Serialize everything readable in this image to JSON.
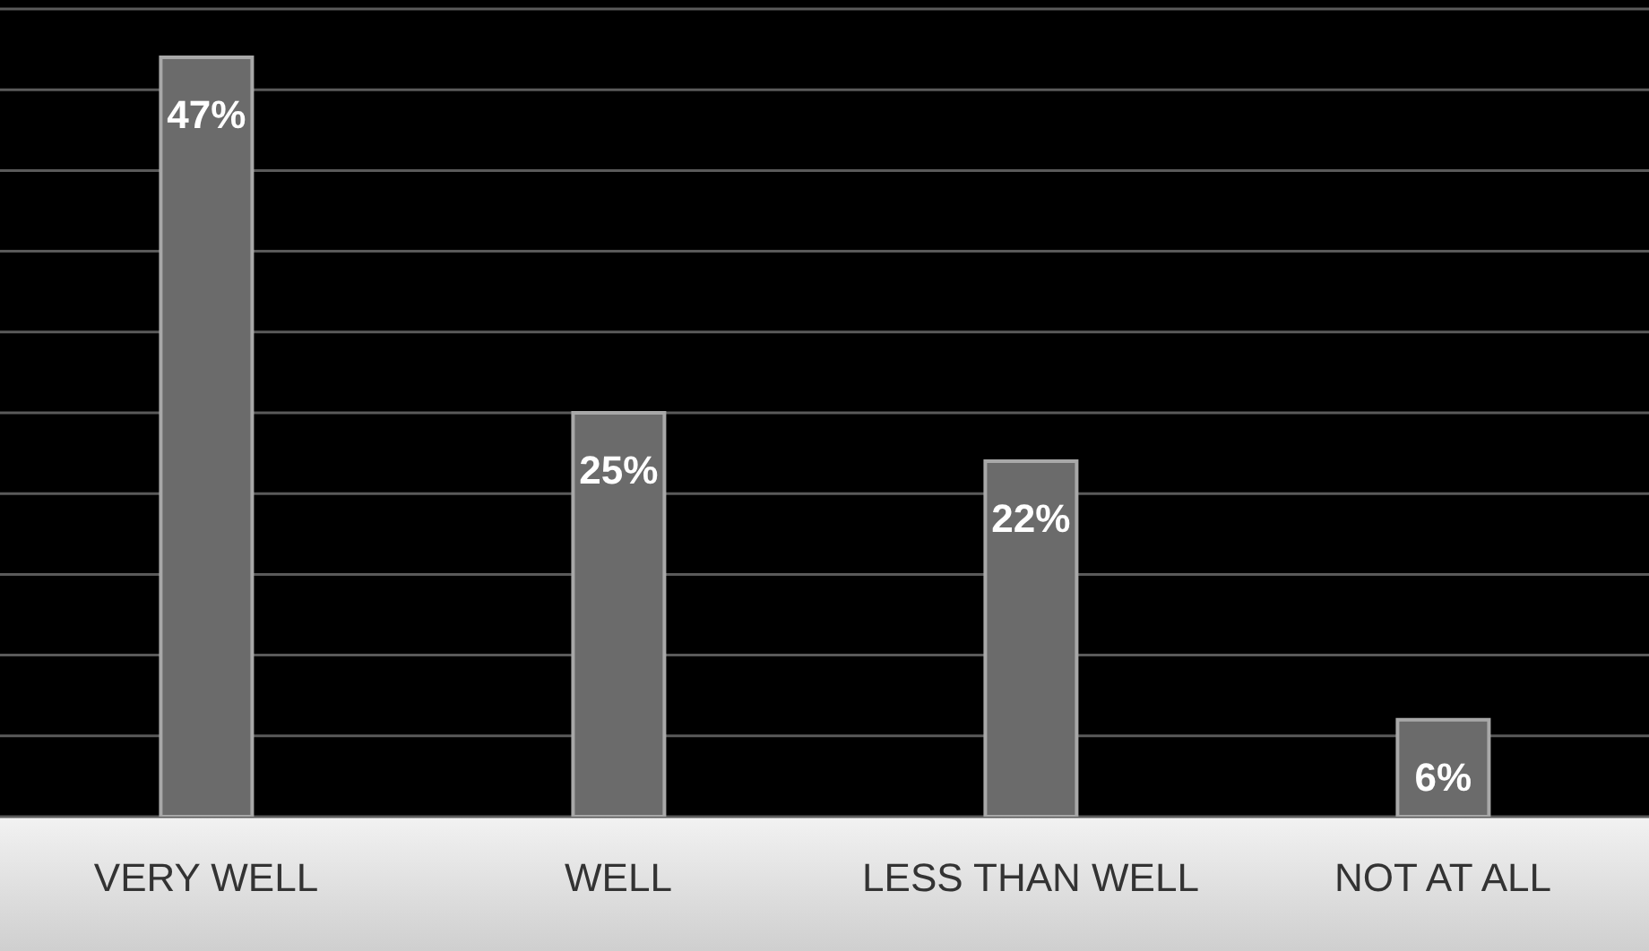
{
  "chart_data": {
    "type": "bar",
    "categories": [
      "VERY WELL",
      "WELL",
      "LESS THAN WELL",
      "NOT AT ALL"
    ],
    "values": [
      47,
      25,
      22,
      6
    ],
    "value_labels": [
      "47%",
      "25%",
      "22%",
      "6%"
    ],
    "color": "#6b6b6b",
    "ylim": [
      0,
      50
    ],
    "grid": "y",
    "tick_labels": "x"
  }
}
